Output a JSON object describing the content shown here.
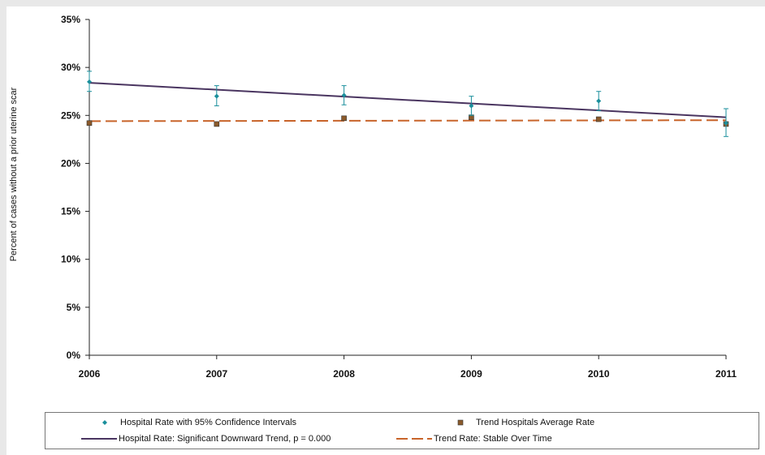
{
  "title": "",
  "colors": {
    "hospital_rate": "#1a8f9c",
    "trend_hospitals": "#8b5a2b",
    "downward_trend": "#4a3560",
    "stable_trend": "#c8642a",
    "title_orange": "#e8731a"
  },
  "legend": {
    "items": [
      {
        "label": "Hospital Rate with 95% Confidence Intervals"
      },
      {
        "label": "Trend Hospitals Average Rate"
      },
      {
        "label": "Hospital Rate: Significant Downward Trend, p = 0.000"
      },
      {
        "label": "Trend Rate: Stable Over Time"
      }
    ]
  },
  "chart_data": {
    "type": "line",
    "title": "",
    "xlabel": "",
    "ylabel": "Percent of cases without a prior uterine scar",
    "categories": [
      "2006",
      "2007",
      "2008",
      "2009",
      "2010",
      "2011"
    ],
    "ylim": [
      0,
      0.35
    ],
    "yticks": [
      "0%",
      "5%",
      "10%",
      "15%",
      "20%",
      "25%",
      "30%",
      "35%"
    ],
    "grid": false,
    "legend_position": "bottom",
    "series": [
      {
        "name": "Hospital Rate with 95% Confidence Intervals",
        "kind": "points_with_ci",
        "values": [
          0.285,
          0.27,
          0.271,
          0.26,
          0.265,
          0.242
        ],
        "ci_low": [
          0.275,
          0.26,
          0.261,
          0.25,
          0.255,
          0.228
        ],
        "ci_high": [
          0.296,
          0.281,
          0.281,
          0.27,
          0.275,
          0.257
        ]
      },
      {
        "name": "Trend Hospitals Average Rate",
        "kind": "points",
        "values": [
          0.242,
          0.241,
          0.247,
          0.248,
          0.246,
          0.241
        ]
      },
      {
        "name": "Hospital Rate: Significant Downward Trend, p = 0.000",
        "kind": "line",
        "values": [
          0.284,
          0.277,
          0.27,
          0.262,
          0.255,
          0.248
        ]
      },
      {
        "name": "Trend Rate: Stable Over Time",
        "kind": "dashed_line",
        "values": [
          0.244,
          0.244,
          0.244,
          0.244,
          0.245,
          0.245
        ]
      }
    ]
  }
}
